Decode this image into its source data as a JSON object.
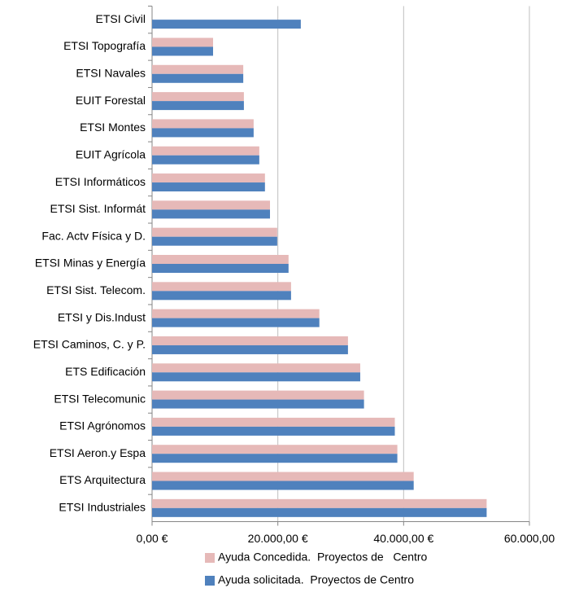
{
  "chart_data": {
    "type": "hbar",
    "categories": [
      "ETSI Civil",
      "ETSI Topografía",
      "ETSI Navales",
      "EUIT Forestal",
      "ETSI Montes",
      "EUIT Agrícola",
      "ETSI Informáticos",
      "ETSI Sist. Informát",
      "Fac. Actv Física y D.",
      "ETSI Minas y Energía",
      "ETSI Sist. Telecom.",
      "ETSI y Dis.Indust",
      "ETSI Caminos, C. y P.",
      "ETS Edificación",
      "ETSI Telecomunic",
      "ETSI Agrónomos",
      "ETSI Aeron.y Espa",
      "ETS Arquitectura",
      "ETSI Industriales"
    ],
    "series": [
      {
        "name": "Ayuda Concedida.  Proyectos de   Centro",
        "color": "#e6b9b8",
        "values": [
          0,
          9700,
          14500,
          14600,
          16150,
          17050,
          17950,
          18750,
          19900,
          21700,
          22100,
          26600,
          31150,
          33100,
          33700,
          38600,
          39000,
          41600,
          53200
        ]
      },
      {
        "name": "Ayuda solicitada.  Proyectos de Centro",
        "color": "#4f81bd",
        "values": [
          23650,
          9700,
          14500,
          14600,
          16150,
          17050,
          17950,
          18750,
          19900,
          21700,
          22100,
          26600,
          31150,
          33100,
          33700,
          38600,
          39000,
          41600,
          53200
        ]
      }
    ],
    "xlim": [
      0,
      60000
    ],
    "xticks": [
      {
        "value": 0,
        "label": "0,00 €"
      },
      {
        "value": 20000,
        "label": "20.000,00 €"
      },
      {
        "value": 40000,
        "label": "40.000,00 €"
      },
      {
        "value": 60000,
        "label": "60.000,00"
      }
    ],
    "grid": true,
    "legend": "bottom"
  }
}
